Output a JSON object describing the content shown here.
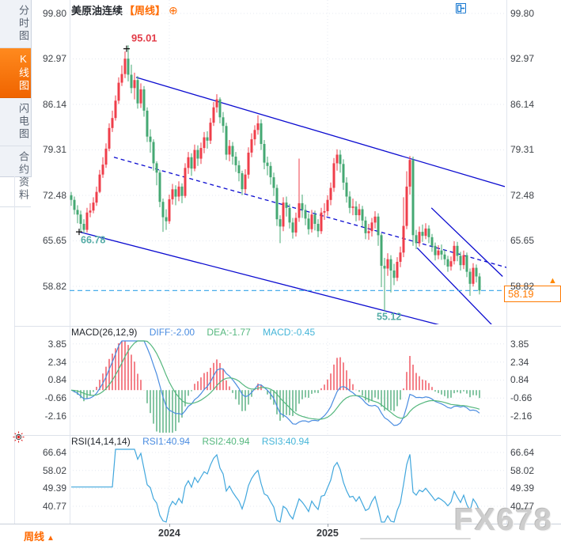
{
  "title": {
    "symbol": "美原油连续",
    "period_bracket": "【周线】",
    "add_indicator": "⊕"
  },
  "toolbar": {
    "icons": [
      "move-tool",
      "axis-scale",
      "axis-scale-active",
      "exit-chart"
    ]
  },
  "sidebar": {
    "items": [
      {
        "label": "分时图",
        "active": false
      },
      {
        "label": "K线图",
        "active": true
      },
      {
        "label": "闪电图",
        "active": false
      },
      {
        "label": "合约资料",
        "active": false
      }
    ]
  },
  "bottom": {
    "period_label": "周线",
    "period_arrow": "▲",
    "watermark": "FX678"
  },
  "chart_data": {
    "type": "candlestick",
    "symbol": "美原油连续",
    "timeframe": "周线",
    "price_axis_ticks": [
      99.8,
      92.97,
      86.14,
      79.31,
      72.48,
      65.65,
      58.82
    ],
    "x_axis_labels": [
      {
        "label": "2024",
        "week": 31
      },
      {
        "label": "2025",
        "week": 81
      }
    ],
    "last_price": "58.19",
    "last_price_value": 58.19,
    "candles": {
      "first_open": 72.5,
      "close": [
        71.8,
        70.3,
        69.6,
        68.2,
        67.3,
        69.9,
        70.2,
        71.4,
        73.0,
        75.6,
        77.1,
        79.5,
        82.6,
        84.1,
        86.7,
        89.4,
        90.7,
        93.0,
        90.6,
        88.6,
        89.8,
        86.3,
        88.4,
        85.2,
        81.3,
        80.5,
        77.3,
        75.9,
        71.5,
        69.2,
        68.6,
        71.9,
        73.4,
        72.3,
        73.8,
        72.4,
        76.6,
        78.2,
        76.5,
        79.3,
        78.0,
        79.6,
        81.2,
        80.7,
        83.4,
        85.7,
        86.9,
        84.2,
        82.9,
        78.6,
        79.9,
        78.3,
        77.0,
        75.8,
        73.4,
        75.6,
        78.9,
        80.9,
        82.3,
        83.3,
        80.2,
        77.4,
        76.9,
        75.2,
        73.6,
        68.9,
        67.8,
        71.4,
        70.6,
        68.4,
        66.9,
        69.1,
        71.3,
        70.3,
        69.0,
        67.4,
        69.6,
        68.2,
        67.1,
        69.9,
        70.1,
        71.8,
        73.6,
        77.3,
        78.6,
        77.2,
        74.4,
        72.3,
        70.6,
        70.8,
        69.5,
        70.4,
        68.7,
        66.8,
        67.1,
        68.4,
        69.3,
        66.5,
        61.9,
        61.5,
        62.9,
        61.2,
        60.1,
        62.5,
        63.9,
        67.9,
        73.8,
        77.8,
        66.5,
        65.3,
        67.0,
        66.4,
        67.5,
        66.2,
        64.9,
        63.5,
        64.2,
        63.6,
        62.9,
        61.8,
        62.6,
        64.9,
        63.4,
        62.0,
        63.5,
        61.0,
        59.2,
        61.6,
        60.3,
        58.19
      ],
      "high": [
        73.0,
        72.3,
        71.0,
        70.2,
        68.9,
        70.6,
        71.3,
        72.2,
        73.8,
        76.3,
        78.2,
        80.3,
        83.3,
        85.2,
        87.5,
        90.2,
        92.0,
        94.1,
        95.01,
        92.1,
        90.9,
        90.4,
        89.3,
        88.9,
        85.7,
        82.4,
        80.9,
        77.6,
        76.3,
        72.0,
        70.4,
        72.6,
        74.2,
        74.0,
        74.6,
        74.3,
        77.3,
        79.0,
        78.8,
        80.1,
        80.0,
        80.4,
        82.0,
        82.1,
        84.1,
        86.5,
        87.67,
        87.2,
        85.0,
        83.4,
        80.8,
        80.5,
        79.0,
        77.7,
        76.2,
        76.4,
        79.7,
        81.8,
        83.0,
        84.5,
        83.9,
        80.8,
        78.3,
        77.5,
        75.9,
        74.1,
        69.5,
        72.2,
        72.3,
        71.2,
        69.1,
        69.9,
        78.0,
        72.6,
        71.1,
        69.8,
        70.3,
        70.2,
        68.9,
        70.6,
        71.3,
        72.5,
        74.4,
        78.1,
        79.39,
        79.3,
        77.9,
        75.2,
        73.1,
        72.0,
        71.6,
        71.2,
        70.9,
        69.3,
        68.2,
        69.1,
        70.1,
        69.8,
        66.8,
        63.1,
        63.8,
        63.5,
        62.2,
        63.2,
        64.8,
        72.2,
        76.1,
        78.4,
        78.3,
        67.3,
        67.8,
        68.1,
        68.3,
        68.0,
        66.7,
        65.4,
        65.0,
        65.1,
        64.3,
        63.4,
        63.3,
        65.6,
        65.5,
        64.0,
        64.2,
        63.9,
        61.5,
        62.3,
        62.1,
        60.8
      ],
      "low": [
        70.9,
        69.6,
        68.3,
        67.1,
        66.78,
        66.9,
        69.2,
        69.8,
        70.9,
        72.8,
        75.1,
        76.6,
        79.1,
        82.0,
        83.7,
        86.2,
        88.9,
        90.1,
        89.6,
        87.8,
        86.9,
        85.5,
        85.6,
        84.3,
        80.5,
        78.9,
        76.2,
        74.0,
        70.7,
        67.0,
        67.3,
        68.2,
        71.1,
        71.0,
        71.6,
        71.3,
        72.1,
        75.7,
        75.4,
        76.1,
        76.9,
        77.2,
        78.8,
        79.5,
        80.2,
        82.9,
        84.9,
        83.3,
        81.9,
        77.8,
        77.6,
        77.1,
        76.0,
        74.6,
        72.5,
        72.8,
        75.0,
        78.2,
        80.0,
        81.6,
        79.3,
        76.4,
        75.5,
        74.1,
        72.4,
        67.9,
        65.3,
        67.1,
        69.3,
        67.5,
        66.0,
        66.3,
        68.5,
        69.1,
        68.0,
        66.6,
        66.9,
        67.2,
        66.2,
        66.7,
        68.8,
        69.4,
        71.0,
        73.0,
        76.2,
        75.9,
        73.3,
        71.4,
        69.8,
        69.5,
        68.6,
        68.7,
        67.8,
        65.9,
        65.8,
        66.3,
        67.5,
        64.9,
        58.7,
        55.12,
        60.4,
        57.9,
        59.0,
        59.6,
        61.7,
        63.2,
        67.4,
        72.6,
        64.9,
        64.4,
        64.8,
        65.5,
        65.9,
        65.3,
        64.0,
        62.7,
        62.9,
        62.8,
        62.0,
        61.0,
        61.2,
        62.1,
        62.6,
        61.2,
        61.4,
        60.2,
        57.4,
        58.8,
        59.4,
        57.6
      ]
    },
    "annotations": [
      {
        "text": "95.01",
        "week": 19.0,
        "price": 95.6,
        "color": "#e23b47",
        "bold": true,
        "size": 13
      },
      {
        "text": "66.78",
        "week": 3.0,
        "price": 65.3,
        "color": "#54aca6",
        "bold": true,
        "size": 12.5
      },
      {
        "text": "55.12",
        "week": 96.5,
        "price": 53.8,
        "color": "#54aca6",
        "bold": true,
        "size": 12.5
      }
    ],
    "anchor_crosses": [
      {
        "week": 17.5,
        "price": 94.5
      },
      {
        "week": 2.5,
        "price": 67.0
      }
    ],
    "trendlines": [
      {
        "w1": 20.5,
        "p1": 90.2,
        "w2": 137.0,
        "p2": 73.8,
        "style": "solid"
      },
      {
        "w1": 2.5,
        "p1": 67.0,
        "w2": 128.0,
        "p2": 51.6,
        "style": "solid"
      },
      {
        "w1": 13.5,
        "p1": 78.2,
        "w2": 138.0,
        "p2": 61.6,
        "style": "dashed"
      },
      {
        "w1": 113.8,
        "p1": 70.6,
        "w2": 136.3,
        "p2": 60.3,
        "style": "solid"
      },
      {
        "w1": 109.3,
        "p1": 64.6,
        "w2": 133.8,
        "p2": 52.6,
        "style": "solid"
      }
    ],
    "macd": {
      "label": "MACD(26,12,9)",
      "diff_label": "DIFF:-2.00",
      "dea_label": "DEA:-1.77",
      "macd_label": "MACD:-0.45",
      "axis_ticks": [
        3.85,
        2.34,
        0.84,
        -0.66,
        -2.16
      ],
      "params": [
        26,
        12,
        9
      ]
    },
    "rsi": {
      "label": "RSI(14,14,14)",
      "rsi1_label": "RSI1:40.94",
      "rsi2_label": "RSI2:40.94",
      "rsi3_label": "RSI3:40.94",
      "axis_ticks": [
        66.64,
        58.02,
        49.39,
        40.77
      ],
      "params": [
        14,
        14,
        14
      ]
    },
    "colors": {
      "up": "#ef3e4a",
      "down": "#45a873",
      "trend": "#0b0bd0",
      "current_line": "#33a3e8",
      "accent": "#ff6a00",
      "diff": "#4a8ce0",
      "dea": "#55b77e",
      "macd_hdr": "#45b5d8",
      "rsi_line": "#41a7dd",
      "grid": "#e4e8f0"
    }
  }
}
